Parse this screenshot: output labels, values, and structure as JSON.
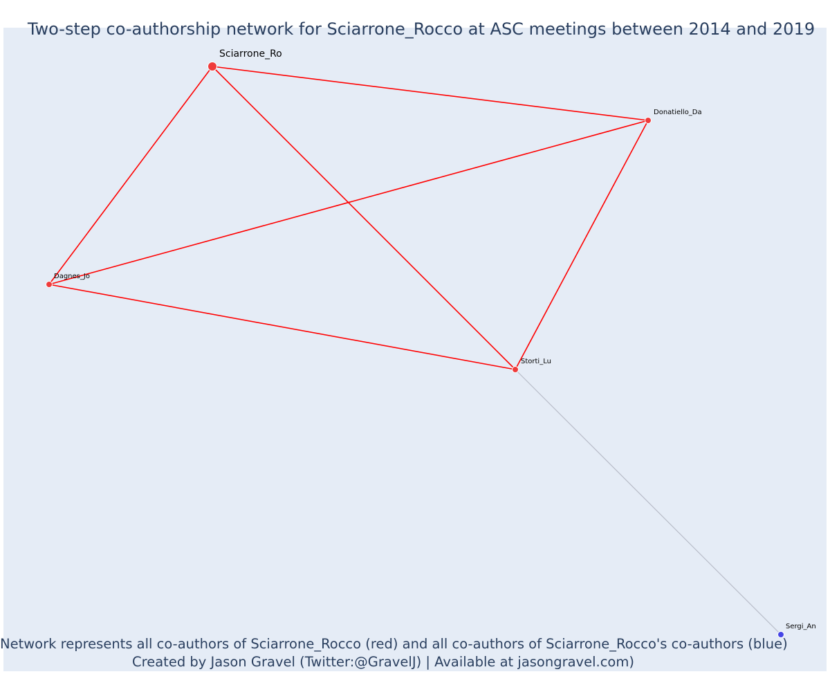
{
  "title": "Two-step co-authorship network for Sciarrone_Rocco at ASC meetings between 2014 and 2019",
  "caption": {
    "line1": "Network represents all co-authors of Sciarrone_Rocco (red) and all co-authors of Sciarrone_Rocco's co-authors (blue)",
    "line2": "Created by Jason Gravel (Twitter:@GravelJ) | Available at jasongravel.com)"
  },
  "colors": {
    "background": "#e5ecf6",
    "direct": "#ff0000",
    "direct_node": "#ef3b3b",
    "secondary_edge": "#b8bcc8",
    "secondary_node": "#4545e6",
    "text": "#2a3f5f"
  },
  "nodes": [
    {
      "id": "Sciarrone_Ro",
      "label": "Sciarrone_Ro",
      "group": "ego"
    },
    {
      "id": "Donatiello_Da",
      "label": "Donatiello_Da",
      "group": "coauthor"
    },
    {
      "id": "Dagnes_Jo",
      "label": "Dagnes_Jo",
      "group": "coauthor"
    },
    {
      "id": "Storti_Lu",
      "label": "Storti_Lu",
      "group": "coauthor"
    },
    {
      "id": "Sergi_An",
      "label": "Sergi_An",
      "group": "second-step"
    }
  ],
  "edges": [
    {
      "source": "Sciarrone_Ro",
      "target": "Donatiello_Da",
      "type": "direct"
    },
    {
      "source": "Sciarrone_Ro",
      "target": "Dagnes_Jo",
      "type": "direct"
    },
    {
      "source": "Sciarrone_Ro",
      "target": "Storti_Lu",
      "type": "direct"
    },
    {
      "source": "Donatiello_Da",
      "target": "Dagnes_Jo",
      "type": "direct"
    },
    {
      "source": "Donatiello_Da",
      "target": "Storti_Lu",
      "type": "direct"
    },
    {
      "source": "Dagnes_Jo",
      "target": "Storti_Lu",
      "type": "direct"
    },
    {
      "source": "Storti_Lu",
      "target": "Sergi_An",
      "type": "secondary"
    }
  ]
}
